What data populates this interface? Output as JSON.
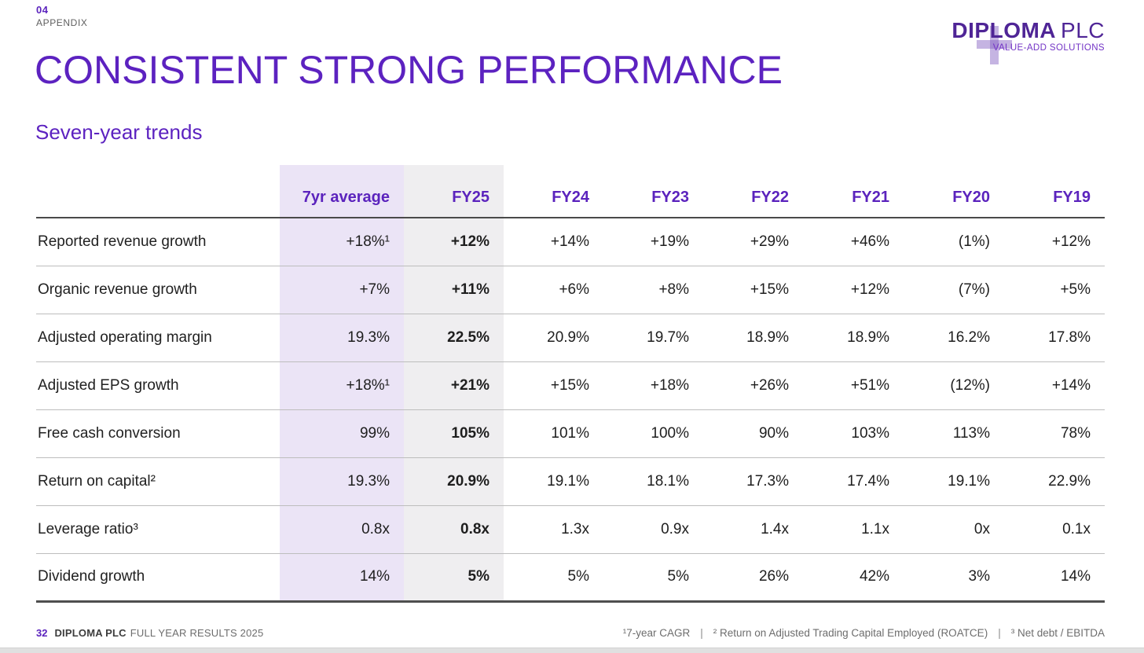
{
  "page": {
    "section_number": "04",
    "section_label": "APPENDIX",
    "title": "CONSISTENT STRONG PERFORMANCE",
    "subtitle": "Seven-year trends"
  },
  "logo": {
    "name": "DIPLOMA",
    "suffix": "PLC",
    "tagline": "VALUE-ADD SOLUTIONS",
    "plus_icon": "plus-cross",
    "brand_color": "#4f2596"
  },
  "colors": {
    "accent_purple": "#5c22c0",
    "avg_column_bg": "#ebe4f6",
    "fy25_column_bg": "#efeef0",
    "text_dark": "#1e1e1e",
    "text_gray": "#6d6d6d"
  },
  "table": {
    "columns": [
      "",
      "7yr average",
      "FY25",
      "FY24",
      "FY23",
      "FY22",
      "FY21",
      "FY20",
      "FY19"
    ],
    "rows": [
      {
        "label": "Reported revenue growth",
        "values": [
          "+18%¹",
          "+12%",
          "+14%",
          "+19%",
          "+29%",
          "+46%",
          "(1%)",
          "+12%"
        ]
      },
      {
        "label": "Organic revenue growth",
        "values": [
          "+7%",
          "+11%",
          "+6%",
          "+8%",
          "+15%",
          "+12%",
          "(7%)",
          "+5%"
        ]
      },
      {
        "label": "Adjusted operating margin",
        "values": [
          "19.3%",
          "22.5%",
          "20.9%",
          "19.7%",
          "18.9%",
          "18.9%",
          "16.2%",
          "17.8%"
        ]
      },
      {
        "label": "Adjusted EPS growth",
        "values": [
          "+18%¹",
          "+21%",
          "+15%",
          "+18%",
          "+26%",
          "+51%",
          "(12%)",
          "+14%"
        ]
      },
      {
        "label": "Free cash conversion",
        "values": [
          "99%",
          "105%",
          "101%",
          "100%",
          "90%",
          "103%",
          "113%",
          "78%"
        ]
      },
      {
        "label": "Return on capital²",
        "values": [
          "19.3%",
          "20.9%",
          "19.1%",
          "18.1%",
          "17.3%",
          "17.4%",
          "19.1%",
          "22.9%"
        ]
      },
      {
        "label": "Leverage ratio³",
        "values": [
          "0.8x",
          "0.8x",
          "1.3x",
          "0.9x",
          "1.4x",
          "1.1x",
          "0x",
          "0.1x"
        ]
      },
      {
        "label": "Dividend growth",
        "values": [
          "14%",
          "5%",
          "5%",
          "5%",
          "26%",
          "42%",
          "3%",
          "14%"
        ]
      }
    ]
  },
  "footer": {
    "page_number": "32",
    "company": "DIPLOMA PLC",
    "report": "FULL YEAR RESULTS 2025",
    "footnote_separator": "|",
    "footnotes": [
      "¹7-year CAGR",
      "² Return on Adjusted Trading Capital Employed (ROATCE)",
      "³ Net debt / EBITDA"
    ]
  }
}
